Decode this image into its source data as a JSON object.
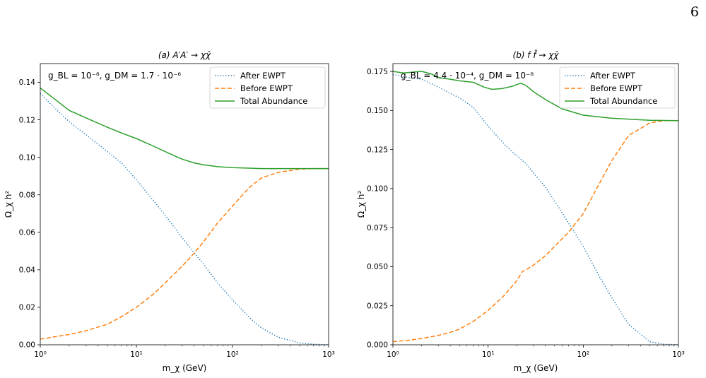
{
  "page": {
    "number": "6"
  },
  "chart_data": [
    {
      "type": "line",
      "title": "(a) A′A′ → χχ̄",
      "xlabel": "m_χ (GeV)",
      "ylabel": "Ω_χ h²",
      "xscale": "log",
      "xlim": [
        1,
        1000
      ],
      "ylim": [
        0,
        0.15
      ],
      "xticks": [
        "10⁰",
        "10¹",
        "10²",
        "10³"
      ],
      "yticks": [
        "0.00",
        "0.02",
        "0.04",
        "0.06",
        "0.08",
        "0.10",
        "0.12",
        "0.14"
      ],
      "annotation": "g_BL = 10⁻⁸, g_DM = 1.7 · 10⁻⁶",
      "legend_position": "top-right",
      "grid": false,
      "series": [
        {
          "name": "After EWPT",
          "color": "#1f77b4",
          "style": "dotted",
          "x": [
            1,
            1.5,
            2,
            3,
            5,
            7,
            10,
            15,
            20,
            30,
            40,
            50,
            70,
            100,
            150,
            200,
            300,
            500,
            700,
            1000
          ],
          "y": [
            0.134,
            0.125,
            0.119,
            0.112,
            0.103,
            0.097,
            0.088,
            0.077,
            0.069,
            0.057,
            0.049,
            0.043,
            0.033,
            0.024,
            0.0145,
            0.009,
            0.004,
            0.001,
            0.0003,
            0.0
          ]
        },
        {
          "name": "Before EWPT",
          "color": "#ff7f0e",
          "style": "dashed",
          "x": [
            1,
            1.5,
            2,
            3,
            5,
            7,
            10,
            15,
            20,
            30,
            40,
            50,
            70,
            100,
            150,
            200,
            300,
            500,
            700,
            1000
          ],
          "y": [
            0.003,
            0.0045,
            0.0055,
            0.0075,
            0.011,
            0.015,
            0.02,
            0.027,
            0.033,
            0.042,
            0.049,
            0.055,
            0.065,
            0.074,
            0.084,
            0.089,
            0.092,
            0.0937,
            0.094,
            0.094
          ]
        },
        {
          "name": "Total Abundance",
          "color": "#2ca02c",
          "style": "solid",
          "x": [
            1,
            1.5,
            2,
            3,
            5,
            7,
            10,
            15,
            20,
            30,
            40,
            50,
            70,
            100,
            150,
            200,
            300,
            500,
            700,
            1000
          ],
          "y": [
            0.137,
            0.13,
            0.125,
            0.121,
            0.116,
            0.113,
            0.11,
            0.106,
            0.103,
            0.099,
            0.097,
            0.096,
            0.095,
            0.0945,
            0.0942,
            0.094,
            0.094,
            0.094,
            0.094,
            0.094
          ]
        }
      ]
    },
    {
      "type": "line",
      "title": "(b) f f̄ → χχ̄",
      "xlabel": "m_χ (GeV)",
      "ylabel": "Ω_χ h²",
      "xscale": "log",
      "xlim": [
        1,
        1000
      ],
      "ylim": [
        0,
        0.18
      ],
      "xticks": [
        "10⁰",
        "10¹",
        "10²",
        "10³"
      ],
      "yticks": [
        "0.000",
        "0.025",
        "0.050",
        "0.075",
        "0.100",
        "0.125",
        "0.150",
        "0.175"
      ],
      "annotation": "g_BL = 4.4 · 10⁻⁴, g_DM = 10⁻⁸",
      "legend_position": "top-right",
      "grid": false,
      "series": [
        {
          "name": "After EWPT",
          "color": "#1f77b4",
          "style": "dotted",
          "x": [
            1,
            1.5,
            2,
            3,
            4,
            5,
            7,
            10,
            15,
            20,
            25,
            30,
            40,
            50,
            70,
            100,
            150,
            200,
            300,
            500,
            700,
            1000
          ],
          "y": [
            0.173,
            0.171,
            0.17,
            0.165,
            0.161,
            0.158,
            0.152,
            0.14,
            0.128,
            0.121,
            0.116,
            0.11,
            0.101,
            0.092,
            0.078,
            0.063,
            0.043,
            0.03,
            0.013,
            0.002,
            0.0004,
            0.0
          ]
        },
        {
          "name": "Before EWPT",
          "color": "#ff7f0e",
          "style": "dashed",
          "x": [
            1,
            1.5,
            2,
            3,
            4,
            5,
            7,
            10,
            15,
            20,
            23,
            25,
            30,
            40,
            50,
            70,
            100,
            150,
            200,
            300,
            500,
            700,
            1000
          ],
          "y": [
            0.002,
            0.003,
            0.004,
            0.006,
            0.008,
            0.01,
            0.015,
            0.022,
            0.032,
            0.041,
            0.047,
            0.048,
            0.051,
            0.057,
            0.063,
            0.072,
            0.084,
            0.104,
            0.118,
            0.134,
            0.142,
            0.1435,
            0.1435
          ]
        },
        {
          "name": "Total Abundance",
          "color": "#2ca02c",
          "style": "solid",
          "x": [
            1,
            1.3,
            1.6,
            2,
            2.5,
            3,
            4,
            5,
            7,
            9,
            11,
            14,
            18,
            22,
            25,
            30,
            40,
            60,
            100,
            200,
            500,
            1000
          ],
          "y": [
            0.175,
            0.174,
            0.1745,
            0.175,
            0.1735,
            0.171,
            0.17,
            0.169,
            0.168,
            0.165,
            0.1635,
            0.164,
            0.1655,
            0.1675,
            0.166,
            0.162,
            0.157,
            0.151,
            0.147,
            0.145,
            0.1437,
            0.1435
          ]
        }
      ]
    }
  ]
}
